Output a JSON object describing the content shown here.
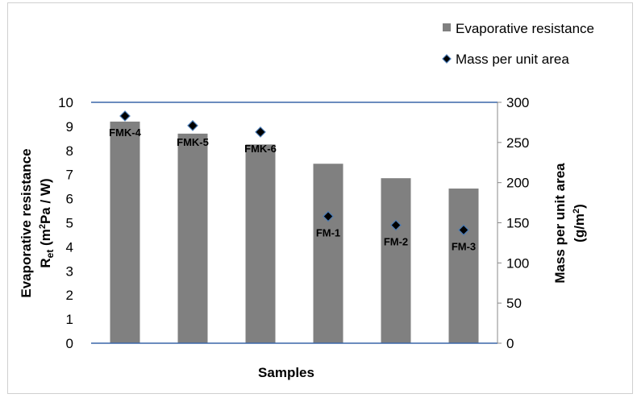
{
  "chart_data": {
    "type": "bar",
    "categories": [
      "FMK-4",
      "FMK-5",
      "FMK-6",
      "FM-1",
      "FM-2",
      "FM-3"
    ],
    "series": [
      {
        "name": "Evaporative resistance",
        "kind": "bar",
        "axis": "left",
        "values": [
          9.2,
          8.7,
          8.25,
          7.45,
          6.85,
          6.42
        ]
      },
      {
        "name": "Mass per unit area",
        "kind": "marker",
        "axis": "right",
        "values": [
          283,
          271,
          263,
          158,
          147,
          141
        ]
      }
    ],
    "xlabel": "Samples",
    "ylabel_left": {
      "line1": "Evaporative resistance",
      "line2_main": "R",
      "line2_sub": "et",
      "line2_unit_a": " (m",
      "line2_sup": "2",
      "line2_unit_b": "Pa / W)"
    },
    "ylabel_right": {
      "line1": "Mass per unit area",
      "line2_a": "(g/m",
      "line2_sup": "2",
      "line2_b": ")"
    },
    "ylim_left": [
      0,
      10
    ],
    "ylim_right": [
      0,
      300
    ],
    "yticks_left": [
      "0",
      "1",
      "2",
      "3",
      "4",
      "5",
      "6",
      "7",
      "8",
      "9",
      "10"
    ],
    "yticks_right": [
      "0",
      "50",
      "100",
      "150",
      "200",
      "250",
      "300"
    ],
    "legend_position": "top-right",
    "grid": false,
    "colors": {
      "bar": "#808080",
      "marker_fill": "#000000",
      "marker_stroke": "#4a7bb5",
      "axis_line": "#3a66a8"
    }
  }
}
